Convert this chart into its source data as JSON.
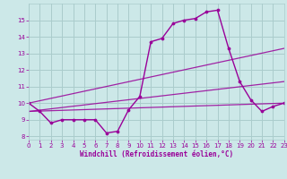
{
  "xlabel": "Windchill (Refroidissement éolien,°C)",
  "bg_color": "#cce8e8",
  "line_color": "#990099",
  "grid_color": "#aacccc",
  "xlim": [
    0,
    23
  ],
  "ylim": [
    7.8,
    16.0
  ],
  "yticks": [
    8,
    9,
    10,
    11,
    12,
    13,
    14,
    15
  ],
  "xticks": [
    0,
    1,
    2,
    3,
    4,
    5,
    6,
    7,
    8,
    9,
    10,
    11,
    12,
    13,
    14,
    15,
    16,
    17,
    18,
    19,
    20,
    21,
    22,
    23
  ],
  "main_x": [
    0,
    1,
    2,
    3,
    4,
    5,
    6,
    7,
    8,
    9,
    10,
    11,
    12,
    13,
    14,
    15,
    16,
    17,
    18,
    19,
    20,
    21,
    22,
    23
  ],
  "main_y": [
    10.0,
    9.5,
    8.8,
    9.0,
    9.0,
    9.0,
    9.0,
    8.2,
    8.3,
    9.6,
    10.4,
    13.7,
    13.9,
    14.8,
    15.0,
    15.1,
    15.5,
    15.6,
    13.3,
    11.3,
    10.2,
    9.5,
    9.8,
    10.0
  ],
  "line1_x": [
    0,
    23
  ],
  "line1_y": [
    10.0,
    13.3
  ],
  "line2_x": [
    0,
    23
  ],
  "line2_y": [
    9.5,
    11.3
  ],
  "line3_x": [
    0,
    23
  ],
  "line3_y": [
    9.5,
    10.0
  ]
}
